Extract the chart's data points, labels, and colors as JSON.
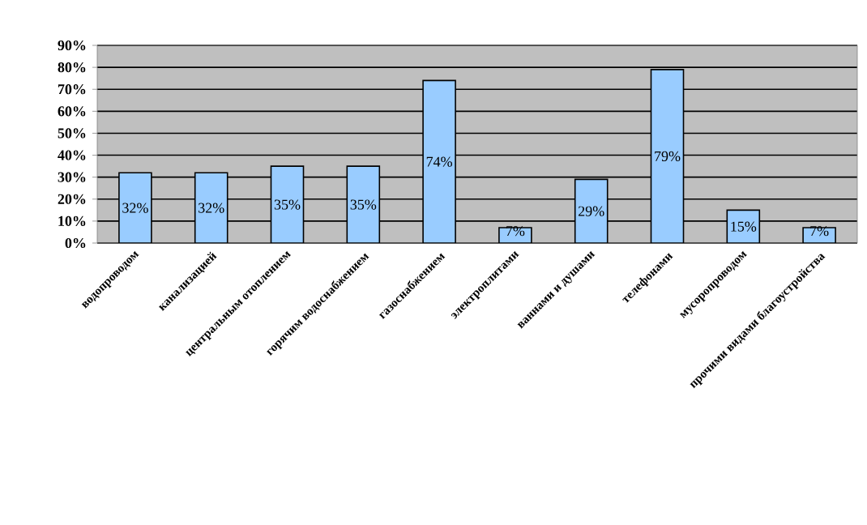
{
  "chart_data": {
    "type": "bar",
    "categories": [
      "водопроводом",
      "канализацией",
      "центральным отоплением",
      "горячим водоснабжением",
      "газоснабжением",
      "электроплитами",
      "ваннами и душами",
      "телефонами",
      "мусоропроводом",
      "прочими видами благоустройства"
    ],
    "values": [
      32,
      32,
      35,
      35,
      74,
      7,
      29,
      79,
      15,
      7
    ],
    "value_labels": [
      "32%",
      "32%",
      "35%",
      "35%",
      "74%",
      "7%",
      "29%",
      "79%",
      "15%",
      "7%"
    ],
    "color": "#99ccff",
    "ylim": [
      0,
      90
    ],
    "yticks": [
      {
        "value": 0,
        "label": "0%"
      },
      {
        "value": 10,
        "label": "10%"
      },
      {
        "value": 20,
        "label": "20%"
      },
      {
        "value": 30,
        "label": "30%"
      },
      {
        "value": 40,
        "label": "40%"
      },
      {
        "value": 50,
        "label": "50%"
      },
      {
        "value": 60,
        "label": "60%"
      },
      {
        "value": 70,
        "label": "70%"
      },
      {
        "value": 80,
        "label": "80%"
      },
      {
        "value": 90,
        "label": "90%"
      }
    ],
    "grid": "y"
  }
}
